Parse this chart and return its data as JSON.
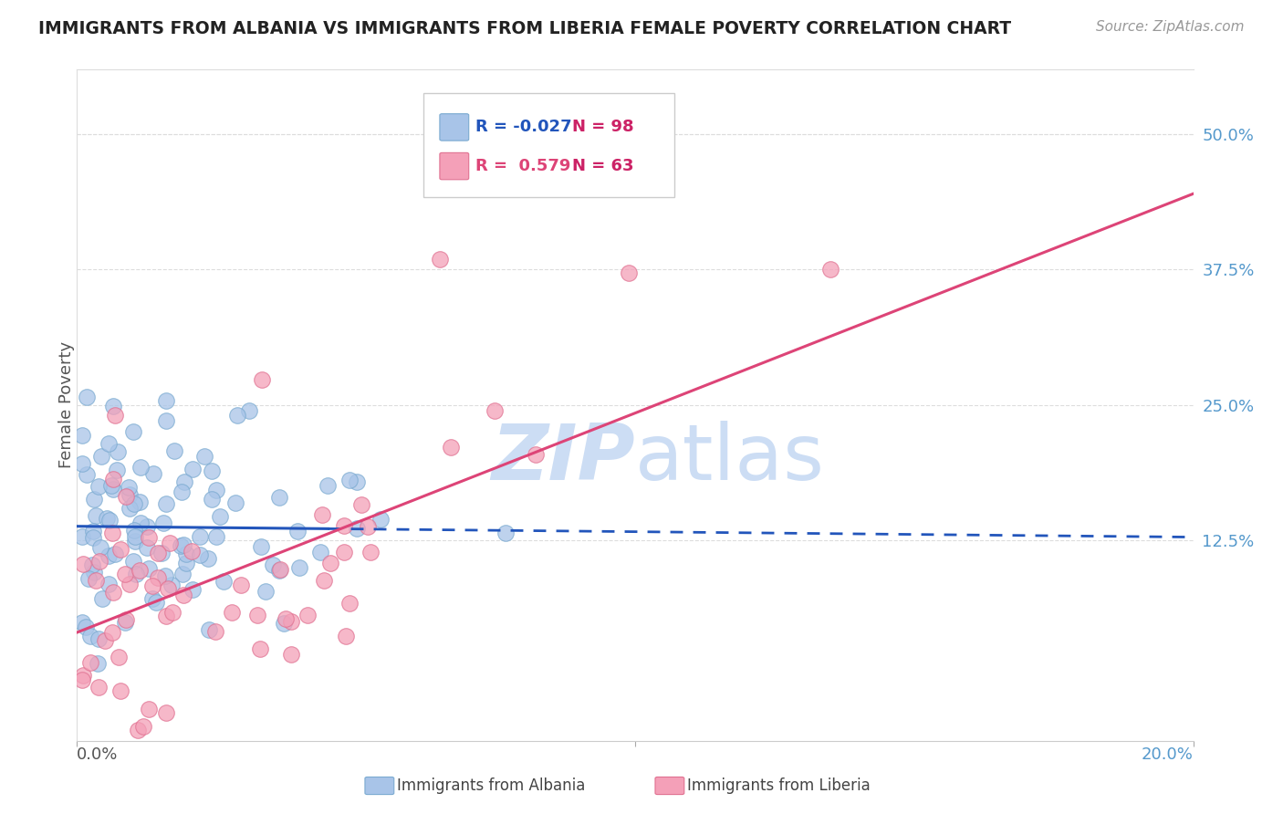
{
  "title": "IMMIGRANTS FROM ALBANIA VS IMMIGRANTS FROM LIBERIA FEMALE POVERTY CORRELATION CHART",
  "source": "Source: ZipAtlas.com",
  "ylabel": "Female Poverty",
  "yticks_labels": [
    "50.0%",
    "37.5%",
    "25.0%",
    "12.5%"
  ],
  "ytick_vals": [
    0.5,
    0.375,
    0.25,
    0.125
  ],
  "xlim": [
    0.0,
    0.2
  ],
  "ylim": [
    -0.06,
    0.56
  ],
  "albania_r": -0.027,
  "albania_n": 98,
  "liberia_r": 0.579,
  "liberia_n": 63,
  "albania_color": "#a8c4e8",
  "albania_edge_color": "#7aaad0",
  "liberia_color": "#f4a0b8",
  "liberia_edge_color": "#e07090",
  "albania_line_color": "#2255bb",
  "liberia_line_color": "#dd4477",
  "watermark_color": "#ccddf4",
  "background_color": "#ffffff",
  "grid_color": "#dddddd",
  "title_color": "#222222",
  "axis_label_color": "#5599cc",
  "legend_r_color_albania": "#2255bb",
  "legend_r_color_liberia": "#dd4477",
  "legend_n_color": "#cc2266",
  "source_color": "#999999"
}
